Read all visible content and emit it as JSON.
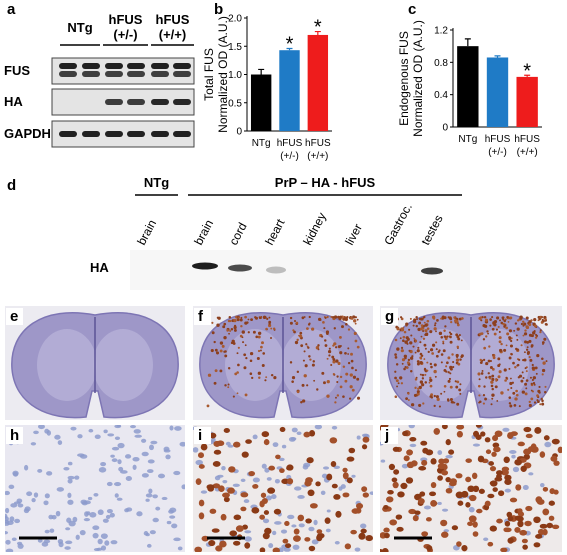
{
  "panel_a": {
    "letter": "a",
    "groups": [
      "NTg",
      "hFUS (+/-)",
      "hFUS (+/+)"
    ],
    "rows": [
      "FUS",
      "HA",
      "GAPDH"
    ]
  },
  "chart_data": [
    {
      "type": "bar",
      "letter": "b",
      "ylabel": [
        "Total FUS",
        "Normalized OD (A.U.)"
      ],
      "categories": [
        "NTg",
        "hFUS (+/-)",
        "hFUS (+/+)"
      ],
      "values": [
        1.0,
        1.43,
        1.7
      ],
      "errors": [
        0.09,
        0.03,
        0.06
      ],
      "colors": [
        "#000000",
        "#1f7bc6",
        "#ee1c1c"
      ],
      "significance": [
        null,
        "*",
        "*"
      ],
      "ylim": [
        0,
        2.0
      ],
      "yticks": [
        0,
        0.5,
        {
          "value": 1,
          "label": "1.0"
        },
        1.5,
        {
          "value": 2,
          "label": "2.0"
        }
      ]
    },
    {
      "type": "bar",
      "letter": "c",
      "ylabel": [
        "Endogenous FUS",
        "Normalized OD (A.U.)"
      ],
      "categories": [
        "NTg",
        "hFUS (+/-)",
        "hFUS (+/+)"
      ],
      "values": [
        1.0,
        0.86,
        0.62
      ],
      "errors": [
        0.09,
        0.02,
        0.02
      ],
      "colors": [
        "#000000",
        "#1f7bc6",
        "#ee1c1c"
      ],
      "significance": [
        null,
        null,
        "*"
      ],
      "ylim": [
        0,
        1.2
      ],
      "yticks": [
        0,
        0.4,
        0.8,
        1.2
      ]
    }
  ],
  "panel_d": {
    "letter": "d",
    "groups": [
      "NTg",
      "PrP – HA - hFUS"
    ],
    "lanes": [
      "brain",
      "brain",
      "cord",
      "heart",
      "kidney",
      "liver",
      "Gastroc.",
      "testes"
    ],
    "row": "HA"
  },
  "histology": {
    "letters": [
      "e",
      "f",
      "g",
      "h",
      "i",
      "j"
    ]
  }
}
